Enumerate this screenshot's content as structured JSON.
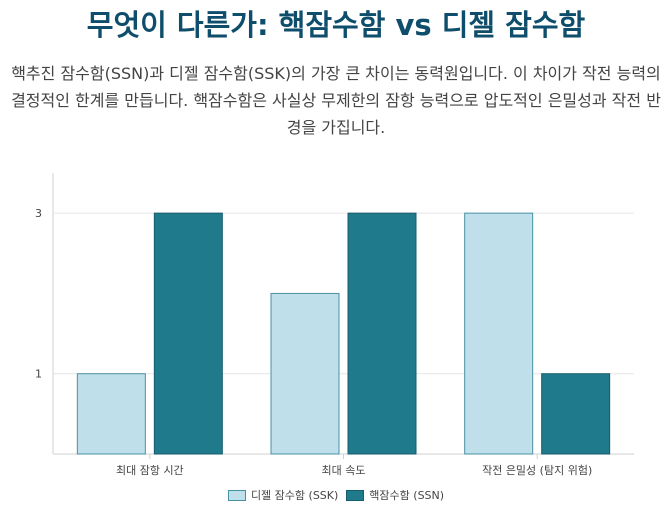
{
  "header": {
    "title": "무엇이 다른가: 핵잠수함 vs 디젤 잠수함",
    "description": "핵추진 잠수함(SSN)과 디젤 잠수함(SSK)의 가장 큰 차이는 동력원입니다. 이 차이가 작전 능력의 결정적인 한계를 만듭니다. 핵잠수함은 사실상 무제한의 잠항 능력으로 압도적인 은밀성과 작전 반경을 가집니다."
  },
  "colors": {
    "title": "#0e4d6b",
    "diesel_fill": "#bfe0ea",
    "diesel_stroke": "#4a90a4",
    "nuclear_fill": "#1f7a8c",
    "nuclear_stroke": "#155e6d",
    "grid": "#e6e6e6"
  },
  "chart_data": {
    "type": "bar",
    "categories": [
      "최대 잠항 시간",
      "최대 속도",
      "작전 은밀성 (탐지 위험)"
    ],
    "series": [
      {
        "name": "디젤 잠수함 (SSK)",
        "values": [
          1,
          2,
          3
        ]
      },
      {
        "name": "핵잠수함 (SSN)",
        "values": [
          3,
          3,
          1
        ]
      }
    ],
    "yticks": [
      1,
      3
    ],
    "ylim": [
      0,
      3.5
    ],
    "grid": true,
    "legend_position": "bottom"
  }
}
